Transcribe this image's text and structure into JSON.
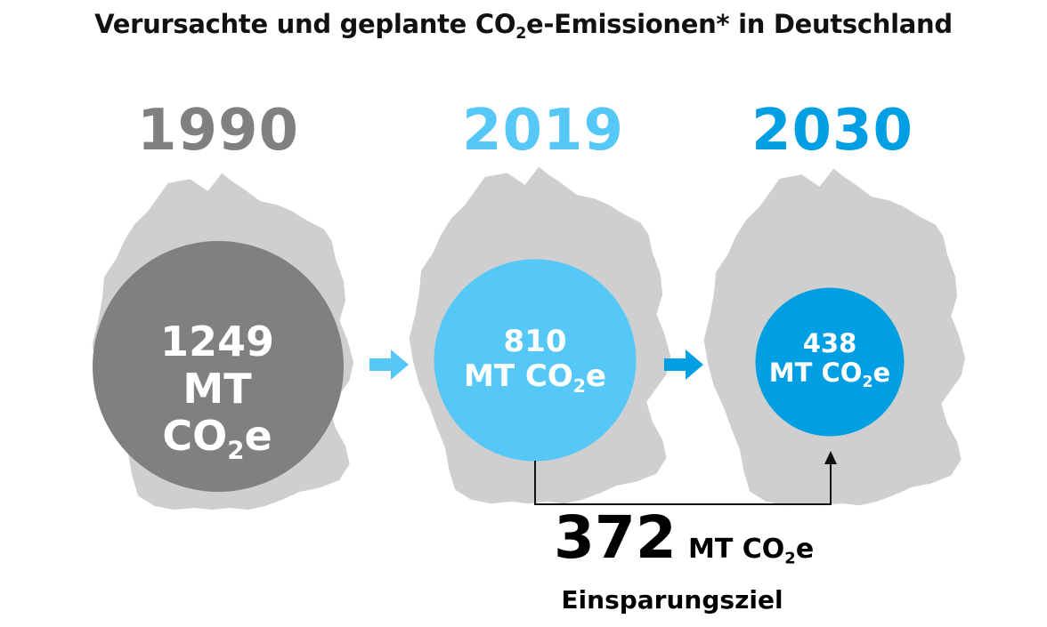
{
  "title": {
    "prefix": "Verursachte und geplante CO",
    "sub": "2",
    "suffix": "e-Emissionen* in Deutschland"
  },
  "unit": {
    "prefix": "MT CO",
    "sub": "2",
    "suffix": "e"
  },
  "colors": {
    "y1990": "#808080",
    "y2019": "#55c8f8",
    "y2030": "#009fe3",
    "map": "#cfcfcf",
    "text_dark": "#111111"
  },
  "icons": [
    "germany-map-icon",
    "arrow-right-icon"
  ],
  "chart_data": {
    "type": "bubble",
    "title": "Verursachte und geplante CO2e-Emissionen* in Deutschland",
    "unit": "MT CO2e",
    "series": [
      {
        "year": "1990",
        "value": 1249,
        "value_label": "1249"
      },
      {
        "year": "2019",
        "value": 810,
        "value_label": "810"
      },
      {
        "year": "2030",
        "value": 438,
        "value_label": "438"
      }
    ],
    "savings": {
      "value": 372,
      "value_label": "372",
      "label": "Einsparungsziel",
      "from": "2019",
      "to": "2030"
    }
  }
}
